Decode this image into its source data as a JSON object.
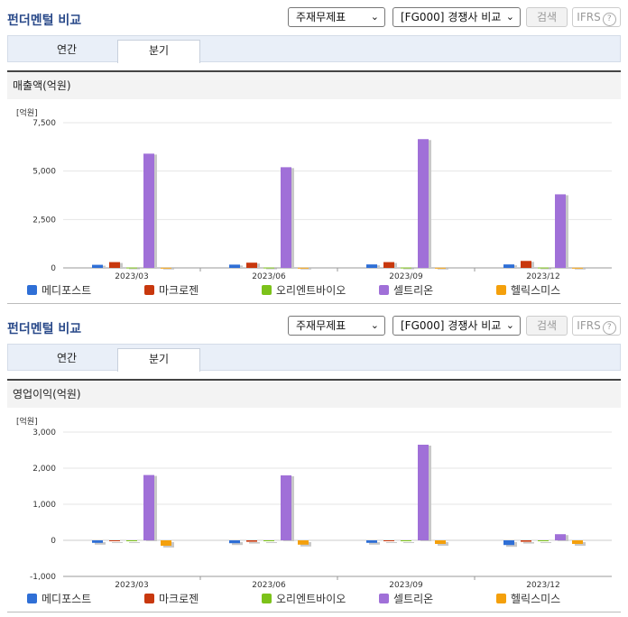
{
  "panels": [
    {
      "title": "펀더멘털 비교",
      "select1": "주재무제표",
      "select2": "[FG000] 경쟁사 비교",
      "search_label": "검색",
      "ifrs_label": "IFRS",
      "tabs": [
        "연간",
        "분기"
      ],
      "active_tab": "분기",
      "header": "매출액(억원)",
      "unit": "[억원]"
    },
    {
      "title": "펀더멘털 비교",
      "select1": "주재무제표",
      "select2": "[FG000] 경쟁사 비교",
      "search_label": "검색",
      "ifrs_label": "IFRS",
      "tabs": [
        "연간",
        "분기"
      ],
      "active_tab": "분기",
      "header": "영업이익(억원)",
      "unit": "[억원]"
    }
  ],
  "colors": {
    "메디포스트": "#2f6fd6",
    "마크로젠": "#c8380e",
    "오리엔트바이오": "#7cc21a",
    "셀트리온": "#a070d8",
    "헬릭스미스": "#f4a00c"
  },
  "chart_data": [
    {
      "type": "bar",
      "title": "매출액(억원)",
      "ylabel": "[억원]",
      "categories": [
        "2023/03",
        "2023/06",
        "2023/09",
        "2023/12"
      ],
      "ylim": [
        0,
        7500
      ],
      "yticks": [
        "0",
        "2,500",
        "5,000",
        "7,500"
      ],
      "ytick_values": [
        0,
        2500,
        5000,
        7500
      ],
      "grid": true,
      "legend": "bottom",
      "series": [
        {
          "name": "메디포스트",
          "values": [
            160,
            170,
            180,
            180
          ]
        },
        {
          "name": "마크로젠",
          "values": [
            300,
            270,
            300,
            360
          ]
        },
        {
          "name": "오리엔트바이오",
          "values": [
            20,
            20,
            20,
            20
          ]
        },
        {
          "name": "셀트리온",
          "values": [
            5900,
            5200,
            6650,
            3800
          ]
        },
        {
          "name": "헬릭스미스",
          "values": [
            10,
            10,
            10,
            10
          ]
        }
      ]
    },
    {
      "type": "bar",
      "title": "영업이익(억원)",
      "ylabel": "[억원]",
      "categories": [
        "2023/03",
        "2023/06",
        "2023/09",
        "2023/12"
      ],
      "ylim": [
        -1000,
        3000
      ],
      "yticks": [
        "-1,000",
        "0",
        "1,000",
        "2,000",
        "3,000"
      ],
      "ytick_values": [
        -1000,
        0,
        1000,
        2000,
        3000
      ],
      "grid": true,
      "legend": "bottom",
      "series": [
        {
          "name": "메디포스트",
          "values": [
            -70,
            -80,
            -70,
            -130
          ]
        },
        {
          "name": "마크로젠",
          "values": [
            -20,
            -40,
            -10,
            -40
          ]
        },
        {
          "name": "오리엔트바이오",
          "values": [
            -10,
            -10,
            -10,
            -10
          ]
        },
        {
          "name": "셀트리온",
          "values": [
            1810,
            1800,
            2650,
            170
          ]
        },
        {
          "name": "헬릭스미스",
          "values": [
            -150,
            -120,
            -100,
            -100
          ]
        }
      ]
    }
  ]
}
